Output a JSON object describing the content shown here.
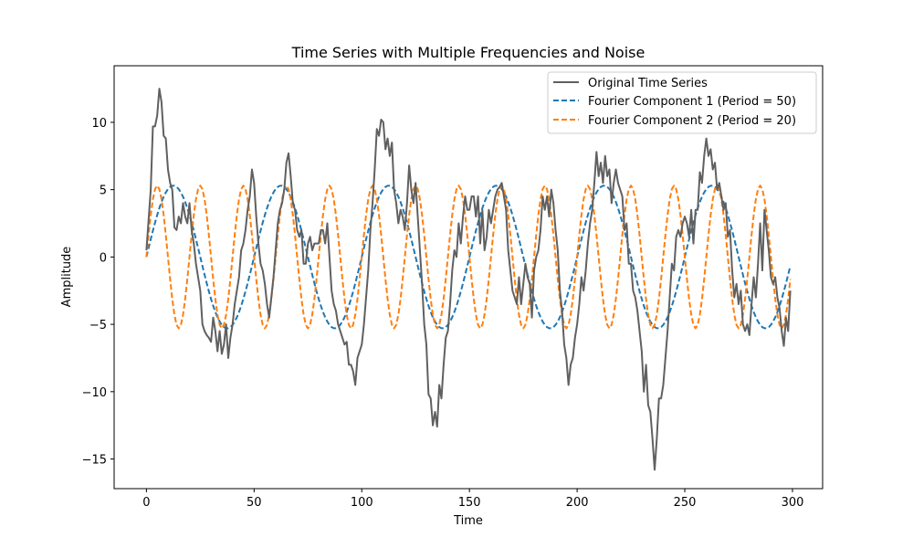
{
  "chart_data": {
    "type": "line",
    "title": "Time Series with Multiple Frequencies and Noise",
    "xlabel": "Time",
    "ylabel": "Amplitude",
    "xlim": [
      -15,
      314
    ],
    "ylim": [
      -17.2,
      14.2
    ],
    "xticks": [
      0,
      50,
      100,
      150,
      200,
      250,
      300
    ],
    "yticks": [
      -15,
      -10,
      -5,
      0,
      5,
      10
    ],
    "grid": false,
    "legend_position": "top-right",
    "series": [
      {
        "name": "Original Time Series",
        "color": "#606060",
        "style": "solid",
        "points": [
          [
            0,
            0.5
          ],
          [
            2,
            5
          ],
          [
            3,
            9.7
          ],
          [
            4,
            9.7
          ],
          [
            5,
            10.5
          ],
          [
            6,
            12.5
          ],
          [
            7,
            11.5
          ],
          [
            8,
            9.0
          ],
          [
            9,
            8.8
          ],
          [
            10,
            6.5
          ],
          [
            11,
            5.5
          ],
          [
            12,
            5.0
          ],
          [
            13,
            2.2
          ],
          [
            14,
            2.0
          ],
          [
            15,
            3.0
          ],
          [
            16,
            2.5
          ],
          [
            17,
            4.0
          ],
          [
            18,
            3.0
          ],
          [
            19,
            2.5
          ],
          [
            20,
            4.0
          ],
          [
            21,
            2.0
          ],
          [
            22,
            1.0
          ],
          [
            23,
            -0.5
          ],
          [
            24,
            -1.5
          ],
          [
            25,
            -2.5
          ],
          [
            26,
            -5.0
          ],
          [
            27,
            -5.5
          ],
          [
            28,
            -5.8
          ],
          [
            29,
            -6.0
          ],
          [
            30,
            -6.3
          ],
          [
            31,
            -4.5
          ],
          [
            32,
            -5.5
          ],
          [
            33,
            -7.0
          ],
          [
            34,
            -5.5
          ],
          [
            35,
            -7.2
          ],
          [
            36,
            -6.5
          ],
          [
            37,
            -5.0
          ],
          [
            38,
            -7.5
          ],
          [
            39,
            -6.0
          ],
          [
            40,
            -5.0
          ],
          [
            41,
            -3.5
          ],
          [
            42,
            -2.5
          ],
          [
            43,
            -1.5
          ],
          [
            44,
            0.5
          ],
          [
            45,
            1.0
          ],
          [
            46,
            2.0
          ],
          [
            47,
            3.5
          ],
          [
            48,
            4.5
          ],
          [
            49,
            6.5
          ],
          [
            50,
            5.5
          ],
          [
            51,
            3.0
          ],
          [
            52,
            1.0
          ],
          [
            53,
            -0.5
          ],
          [
            54,
            -1.0
          ],
          [
            55,
            -2.0
          ],
          [
            56,
            -3.5
          ],
          [
            57,
            -4.5
          ],
          [
            58,
            -3.0
          ],
          [
            59,
            -1.5
          ],
          [
            60,
            0.5
          ],
          [
            61,
            2.5
          ],
          [
            62,
            3.5
          ],
          [
            63,
            4.0
          ],
          [
            64,
            5.0
          ],
          [
            65,
            7.0
          ],
          [
            66,
            7.7
          ],
          [
            67,
            6.0
          ],
          [
            68,
            4.0
          ],
          [
            69,
            3.5
          ],
          [
            70,
            2.0
          ],
          [
            71,
            1.5
          ],
          [
            72,
            2.0
          ],
          [
            73,
            -0.5
          ],
          [
            74,
            -0.5
          ],
          [
            75,
            1.0
          ],
          [
            76,
            1.5
          ],
          [
            77,
            0.5
          ],
          [
            78,
            1.0
          ],
          [
            79,
            1.0
          ],
          [
            80,
            1.0
          ],
          [
            81,
            2.0
          ],
          [
            82,
            2.0
          ],
          [
            83,
            1.0
          ],
          [
            84,
            2.5
          ],
          [
            85,
            0.0
          ],
          [
            86,
            -2.5
          ],
          [
            87,
            -3.5
          ],
          [
            88,
            -4.0
          ],
          [
            89,
            -5.0
          ],
          [
            90,
            -5.5
          ],
          [
            91,
            -6.0
          ],
          [
            92,
            -6.5
          ],
          [
            93,
            -6.3
          ],
          [
            94,
            -8.0
          ],
          [
            95,
            -8.0
          ],
          [
            96,
            -8.5
          ],
          [
            97,
            -9.5
          ],
          [
            98,
            -7.5
          ],
          [
            99,
            -7.0
          ],
          [
            100,
            -6.5
          ],
          [
            101,
            -5.0
          ],
          [
            102,
            -3.0
          ],
          [
            103,
            -1.0
          ],
          [
            104,
            2.0
          ],
          [
            105,
            4.0
          ],
          [
            106,
            6.5
          ],
          [
            107,
            9.5
          ],
          [
            108,
            9.0
          ],
          [
            109,
            10.2
          ],
          [
            110,
            10.0
          ],
          [
            111,
            8.0
          ],
          [
            112,
            8.8
          ],
          [
            113,
            7.5
          ],
          [
            114,
            8.5
          ],
          [
            115,
            5.0
          ],
          [
            116,
            4.0
          ],
          [
            117,
            2.5
          ],
          [
            118,
            3.5
          ],
          [
            119,
            3.0
          ],
          [
            120,
            2.0
          ],
          [
            121,
            4.0
          ],
          [
            122,
            6.8
          ],
          [
            123,
            5.0
          ],
          [
            124,
            4.0
          ],
          [
            125,
            5.5
          ],
          [
            126,
            3.0
          ],
          [
            127,
            0.5
          ],
          [
            128,
            -2.0
          ],
          [
            129,
            -5.0
          ],
          [
            130,
            -6.5
          ],
          [
            131,
            -10.2
          ],
          [
            132,
            -10.5
          ],
          [
            133,
            -12.5
          ],
          [
            134,
            -11.5
          ],
          [
            135,
            -12.6
          ],
          [
            136,
            -9.5
          ],
          [
            137,
            -10.5
          ],
          [
            138,
            -8.0
          ],
          [
            139,
            -6.0
          ],
          [
            140,
            -5.5
          ],
          [
            141,
            -3.5
          ],
          [
            142,
            -1.0
          ],
          [
            143,
            0.5
          ],
          [
            144,
            0.0
          ],
          [
            145,
            2.5
          ],
          [
            146,
            1.0
          ],
          [
            147,
            3.0
          ],
          [
            148,
            4.5
          ],
          [
            149,
            3.5
          ],
          [
            150,
            3.5
          ],
          [
            151,
            4.5
          ],
          [
            152,
            4.5
          ],
          [
            153,
            3.0
          ],
          [
            154,
            4.5
          ],
          [
            155,
            1.0
          ],
          [
            156,
            3.5
          ],
          [
            157,
            0.5
          ],
          [
            158,
            1.5
          ],
          [
            159,
            3.5
          ],
          [
            160,
            2.5
          ],
          [
            161,
            3.5
          ],
          [
            162,
            4.5
          ],
          [
            163,
            5.0
          ],
          [
            164,
            5.2
          ],
          [
            165,
            5.5
          ],
          [
            166,
            4.5
          ],
          [
            167,
            3.5
          ],
          [
            168,
            0.5
          ],
          [
            169,
            -1.0
          ],
          [
            170,
            -2.5
          ],
          [
            171,
            -3.0
          ],
          [
            172,
            -3.5
          ],
          [
            173,
            -1.5
          ],
          [
            174,
            -3.5
          ],
          [
            175,
            -2.0
          ],
          [
            176,
            -0.5
          ],
          [
            177,
            -1.5
          ],
          [
            178,
            -2.0
          ],
          [
            179,
            -4.5
          ],
          [
            180,
            -1.0
          ],
          [
            181,
            0.0
          ],
          [
            182,
            0.5
          ],
          [
            183,
            2.0
          ],
          [
            184,
            4.5
          ],
          [
            185,
            3.5
          ],
          [
            186,
            4.5
          ],
          [
            187,
            3.0
          ],
          [
            188,
            5.0
          ],
          [
            189,
            4.0
          ],
          [
            190,
            2.0
          ],
          [
            191,
            0.5
          ],
          [
            192,
            -2.5
          ],
          [
            193,
            -4.0
          ],
          [
            194,
            -6.5
          ],
          [
            195,
            -7.5
          ],
          [
            196,
            -9.5
          ],
          [
            197,
            -8.0
          ],
          [
            198,
            -7.5
          ],
          [
            199,
            -6.0
          ],
          [
            200,
            -5.0
          ],
          [
            201,
            -3.5
          ],
          [
            202,
            -1.5
          ],
          [
            203,
            -2.5
          ],
          [
            204,
            -1.0
          ],
          [
            205,
            1.0
          ],
          [
            206,
            2.5
          ],
          [
            207,
            3.5
          ],
          [
            208,
            5.5
          ],
          [
            209,
            7.8
          ],
          [
            210,
            6.0
          ],
          [
            211,
            7.0
          ],
          [
            212,
            5.5
          ],
          [
            213,
            7.5
          ],
          [
            214,
            6.0
          ],
          [
            215,
            6.5
          ],
          [
            216,
            4.0
          ],
          [
            217,
            5.5
          ],
          [
            218,
            6.5
          ],
          [
            219,
            5.5
          ],
          [
            220,
            5.0
          ],
          [
            221,
            4.5
          ],
          [
            222,
            2.0
          ],
          [
            223,
            2.5
          ],
          [
            224,
            -0.5
          ],
          [
            225,
            -0.5
          ],
          [
            226,
            -2.5
          ],
          [
            227,
            -3.0
          ],
          [
            228,
            -4.0
          ],
          [
            229,
            -5.5
          ],
          [
            230,
            -7.0
          ],
          [
            231,
            -10.0
          ],
          [
            232,
            -8.0
          ],
          [
            233,
            -11.0
          ],
          [
            234,
            -11.5
          ],
          [
            235,
            -13.5
          ],
          [
            236,
            -15.8
          ],
          [
            237,
            -13.5
          ],
          [
            238,
            -10.5
          ],
          [
            239,
            -10.5
          ],
          [
            240,
            -9.5
          ],
          [
            241,
            -7.5
          ],
          [
            242,
            -5.5
          ],
          [
            243,
            -3.0
          ],
          [
            244,
            -0.5
          ],
          [
            245,
            -1.0
          ],
          [
            246,
            1.5
          ],
          [
            247,
            2.0
          ],
          [
            248,
            1.5
          ],
          [
            249,
            2.5
          ],
          [
            250,
            3.0
          ],
          [
            251,
            2.5
          ],
          [
            252,
            1.5
          ],
          [
            253,
            3.5
          ],
          [
            254,
            1.0
          ],
          [
            255,
            3.5
          ],
          [
            256,
            3.5
          ],
          [
            257,
            6.3
          ],
          [
            258,
            5.5
          ],
          [
            259,
            7.5
          ],
          [
            260,
            8.8
          ],
          [
            261,
            7.5
          ],
          [
            262,
            8.0
          ],
          [
            263,
            6.5
          ],
          [
            264,
            7.0
          ],
          [
            265,
            5.0
          ],
          [
            266,
            5.5
          ],
          [
            267,
            4.5
          ],
          [
            268,
            3.5
          ],
          [
            269,
            4.0
          ],
          [
            270,
            1.5
          ],
          [
            271,
            2.0
          ],
          [
            272,
            -1.0
          ],
          [
            273,
            -3.0
          ],
          [
            274,
            -2.0
          ],
          [
            275,
            -3.5
          ],
          [
            276,
            -2.5
          ],
          [
            277,
            -5.0
          ],
          [
            278,
            -5.5
          ],
          [
            279,
            -5.0
          ],
          [
            280,
            -5.8
          ],
          [
            281,
            -3.5
          ],
          [
            282,
            -1.5
          ],
          [
            283,
            -3.0
          ],
          [
            284,
            -0.5
          ],
          [
            285,
            2.5
          ],
          [
            286,
            -1.0
          ],
          [
            287,
            3.5
          ],
          [
            288,
            2.0
          ],
          [
            289,
            0.5
          ],
          [
            290,
            -1.5
          ],
          [
            291,
            -2.0
          ],
          [
            292,
            -1.5
          ],
          [
            293,
            -3.0
          ],
          [
            294,
            -3.8
          ],
          [
            295,
            -5.5
          ],
          [
            296,
            -6.6
          ],
          [
            297,
            -4.5
          ],
          [
            298,
            -5.5
          ],
          [
            299,
            -2.5
          ]
        ]
      },
      {
        "name": "Fourier Component 1 (Period = 50)",
        "color": "#1f77b4",
        "style": "dashed",
        "generator": {
          "amplitude": 5.3,
          "period": 50,
          "x_start": 0,
          "x_end": 299,
          "step": 1
        }
      },
      {
        "name": "Fourier Component 2 (Period = 20)",
        "color": "#ff7f0e",
        "style": "dashed",
        "generator": {
          "amplitude": 5.3,
          "period": 20,
          "x_start": 0,
          "x_end": 299,
          "step": 1
        }
      }
    ]
  }
}
